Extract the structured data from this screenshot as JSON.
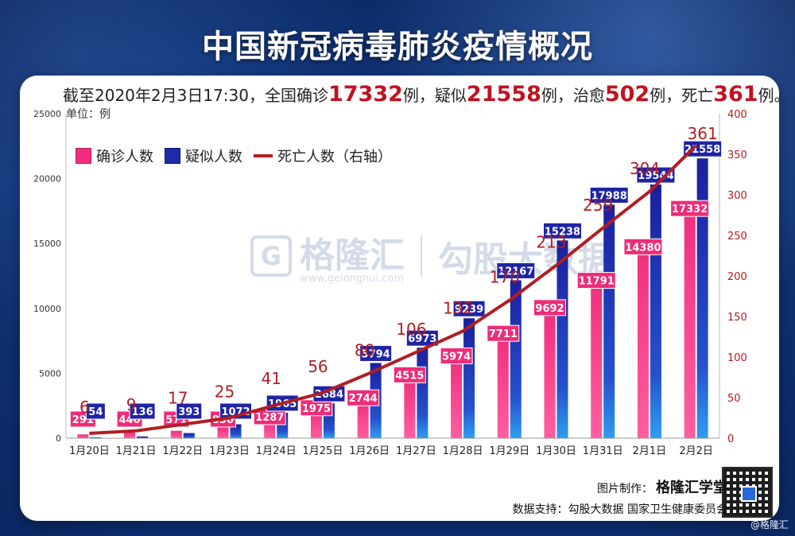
{
  "title": "中国新冠病毒肺炎疫情概况",
  "summary": {
    "prefix": "截至2020年2月3日17:30，全国确诊",
    "confirmed": "17332",
    "mid1": "例，疑似",
    "suspected": "21558",
    "mid2": "例，治愈",
    "cured": "502",
    "mid3": "例，死亡",
    "deaths": "361",
    "suffix": "例。"
  },
  "unit_label": "单位：例",
  "legend": {
    "confirmed": "确诊人数",
    "suspected": "疑似人数",
    "deaths": "死亡人数（右轴）"
  },
  "watermark": {
    "logo_letter": "G",
    "brand": "格隆汇",
    "url": "www.gelonghui.com",
    "right": "勾股大数据"
  },
  "footer": {
    "made_by_label": "图片制作：",
    "made_by_brand": "格隆汇学堂",
    "source": "数据支持：勾股大数据 国家卫生健康委员会"
  },
  "corner_mark": "@格隆汇",
  "colors": {
    "confirmed": "#ef2d7a",
    "suspected": "#1f2aa8",
    "deaths": "#b21d22",
    "header_bg": "#123a86"
  },
  "chart_data": {
    "type": "bar",
    "categories": [
      "1月20日",
      "1月21日",
      "1月22日",
      "1月23日",
      "1月24日",
      "1月25日",
      "1月26日",
      "1月27日",
      "1月28日",
      "1月29日",
      "1月30日",
      "1月31日",
      "2月1日",
      "2月2日"
    ],
    "series": [
      {
        "name": "确诊人数",
        "axis": "left",
        "values": [
          291,
          440,
          571,
          830,
          1287,
          1975,
          2744,
          4515,
          5974,
          7711,
          9692,
          11791,
          14380,
          17332
        ]
      },
      {
        "name": "疑似人数",
        "axis": "left",
        "values": [
          54,
          136,
          393,
          1072,
          1965,
          2684,
          5794,
          6973,
          9239,
          12167,
          15238,
          17988,
          19544,
          21558
        ]
      },
      {
        "name": "死亡人数（右轴）",
        "axis": "right",
        "type": "line",
        "values": [
          6,
          9,
          17,
          25,
          41,
          56,
          80,
          106,
          132,
          170,
          213,
          259,
          304,
          361
        ]
      }
    ],
    "left_ylim": [
      0,
      25000
    ],
    "left_ticks": [
      0,
      5000,
      10000,
      15000,
      20000,
      25000
    ],
    "right_ylim": [
      0,
      400
    ],
    "right_ticks": [
      0,
      50,
      100,
      150,
      200,
      250,
      300,
      350,
      400
    ],
    "legend_position": "top-left",
    "grid": false
  }
}
